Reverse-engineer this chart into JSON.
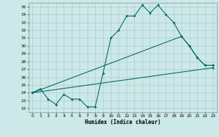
{
  "xlabel": "Humidex (Indice chaleur)",
  "bg_color": "#cce8e8",
  "grid_color": "#aacccc",
  "line_color": "#006666",
  "xlim": [
    -0.5,
    23.5
  ],
  "ylim": [
    21.5,
    35.5
  ],
  "xticks": [
    0,
    1,
    2,
    3,
    4,
    5,
    6,
    7,
    8,
    9,
    10,
    11,
    12,
    13,
    14,
    15,
    16,
    17,
    18,
    19,
    20,
    21,
    22,
    23
  ],
  "yticks": [
    22,
    23,
    24,
    25,
    26,
    27,
    28,
    29,
    30,
    31,
    32,
    33,
    34,
    35
  ],
  "line1_x": [
    0,
    1,
    2,
    3,
    4,
    5,
    6,
    7,
    8,
    9,
    10,
    11,
    12,
    13,
    14,
    15,
    16,
    17,
    18,
    19,
    20,
    21,
    22,
    23
  ],
  "line1_y": [
    24.0,
    24.5,
    23.2,
    22.5,
    23.8,
    23.2,
    23.2,
    22.2,
    22.2,
    26.5,
    31.0,
    32.0,
    33.8,
    33.8,
    35.2,
    34.2,
    35.2,
    34.0,
    33.0,
    31.2,
    30.0,
    28.5,
    27.5,
    27.5
  ],
  "line2_x": [
    0,
    19,
    20,
    21,
    22,
    23
  ],
  "line2_y": [
    24.0,
    31.2,
    30.0,
    28.5,
    27.5,
    27.5
  ],
  "line3_x": [
    0,
    23
  ],
  "line3_y": [
    24.0,
    27.2
  ]
}
